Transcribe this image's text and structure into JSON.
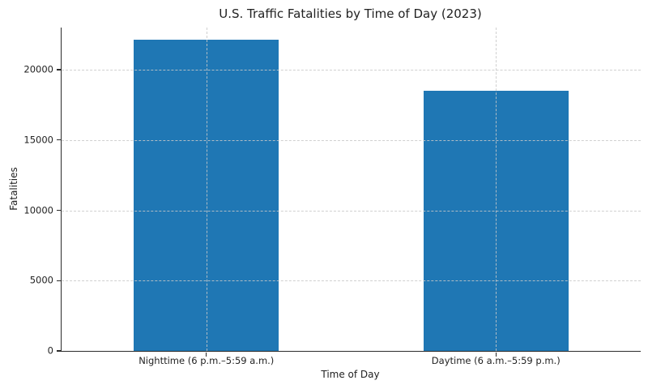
{
  "figure": {
    "title": "U.S. Traffic Fatalities by Time of Day (2023)"
  },
  "chart_data": {
    "type": "bar",
    "title": "U.S. Traffic Fatalities by Time of Day (2023)",
    "xlabel": "Time of Day",
    "ylabel": "Fatalities",
    "categories": [
      "Nighttime (6 p.m.–5:59 a.m.)",
      "Daytime (6 a.m.–5:59 p.m.)"
    ],
    "values": [
      22150,
      18500
    ],
    "y_ticks": [
      0,
      5000,
      10000,
      15000,
      20000
    ],
    "ylim": [
      0,
      23000
    ],
    "bar_color": "#1f77b4",
    "bar_width_fraction": 0.5,
    "grid": "dashed light-gray, horizontal at y ticks and vertical at category centers",
    "legend_position": "none",
    "spines": [
      "left",
      "bottom"
    ]
  }
}
